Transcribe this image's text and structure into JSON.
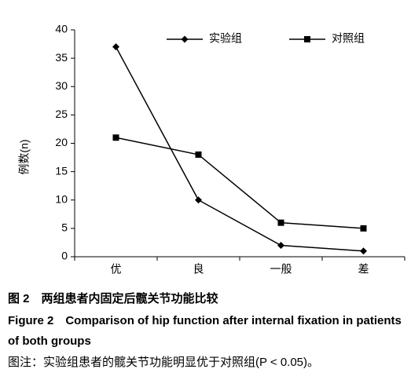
{
  "chart_data": {
    "type": "line",
    "y_label": "例数(n)",
    "categories": [
      "优",
      "良",
      "一般",
      "差"
    ],
    "series": [
      {
        "name": "实验组",
        "color": "#000000",
        "marker": "diamond",
        "values": [
          37,
          10,
          2,
          1
        ]
      },
      {
        "name": "对照组",
        "color": "#000000",
        "marker": "square",
        "values": [
          21,
          18,
          6,
          5
        ]
      }
    ],
    "ylim": [
      0,
      40
    ],
    "yticks": [
      0,
      5,
      10,
      15,
      20,
      25,
      30,
      35,
      40
    ],
    "grid": false,
    "legend": "top"
  },
  "caption": {
    "label": "图 2　两组患者内固定后髋关节功能比较",
    "english": "Figure 2　Comparison of hip function after internal fixation in patients of both groups",
    "note": "图注：实验组患者的髋关节功能明显优于对照组(P < 0.05)。"
  }
}
